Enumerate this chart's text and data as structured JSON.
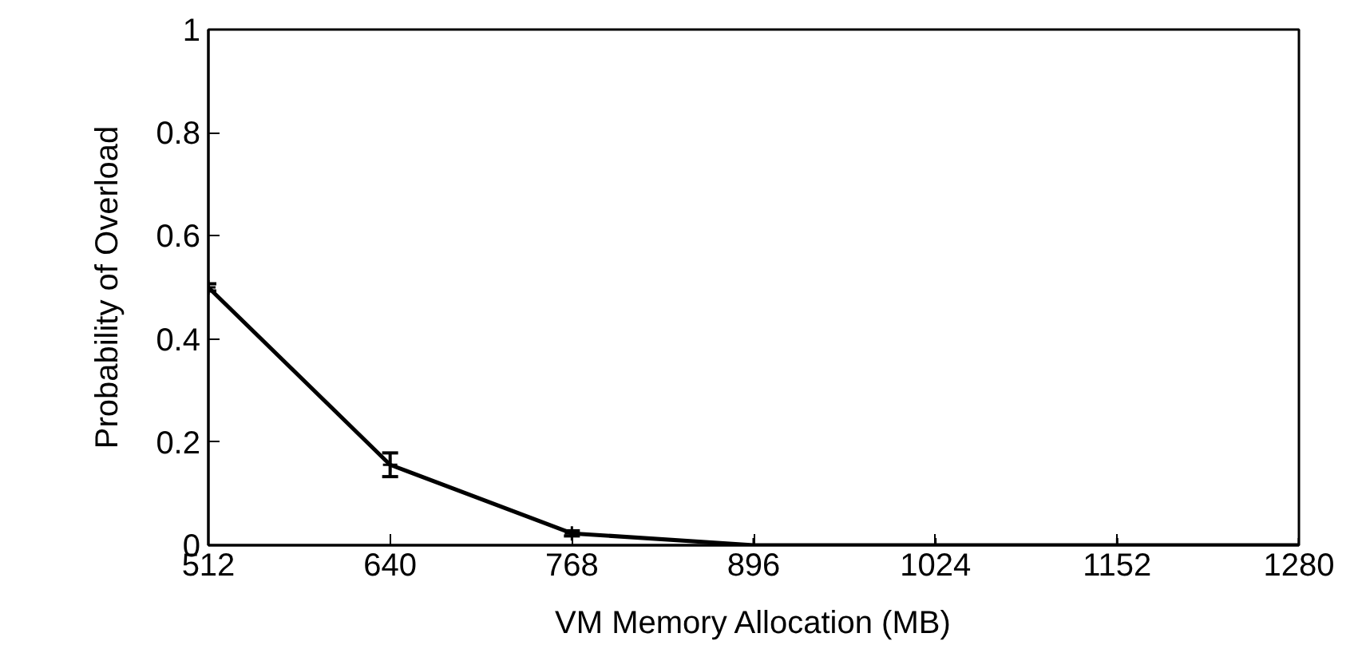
{
  "chart_data": {
    "type": "line",
    "xlabel": "VM Memory Allocation (MB)",
    "ylabel": "Probability of Overload",
    "x": [
      512,
      640,
      768,
      896,
      1024,
      1152,
      1280
    ],
    "series": [
      {
        "color": "#000000",
        "values": [
          0.5,
          0.156,
          0.023,
          0,
          0,
          0,
          0
        ],
        "errors": [
          0.007,
          0.023,
          0.005,
          null,
          null,
          null,
          null
        ]
      }
    ],
    "xlim": [
      512,
      1280
    ],
    "xticks": [
      512,
      640,
      768,
      896,
      1024,
      1152,
      1280
    ],
    "ylim": [
      0,
      1
    ],
    "yticks": [
      0,
      0.2,
      0.4,
      0.6,
      0.8,
      1
    ],
    "grid": false,
    "marker": "cross",
    "line_style": "solid"
  }
}
